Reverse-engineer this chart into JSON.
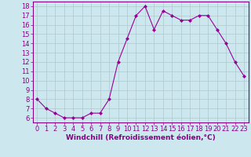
{
  "x": [
    0,
    1,
    2,
    3,
    4,
    5,
    6,
    7,
    8,
    9,
    10,
    11,
    12,
    13,
    14,
    15,
    16,
    17,
    18,
    19,
    20,
    21,
    22,
    23
  ],
  "y": [
    8,
    7,
    6.5,
    6,
    6,
    6,
    6.5,
    6.5,
    8,
    12,
    14.5,
    17,
    18,
    15.5,
    17.5,
    17,
    16.5,
    16.5,
    17,
    17,
    15.5,
    14,
    12,
    10.5
  ],
  "line_color": "#990099",
  "marker": "D",
  "markersize": 2,
  "bg_color": "#cce8ee",
  "grid_color": "#b0c8cc",
  "xlabel": "Windchill (Refroidissement éolien,°C)",
  "ylabel": "",
  "ylim": [
    5.5,
    18.5
  ],
  "xlim": [
    -0.5,
    23.5
  ],
  "yticks": [
    6,
    7,
    8,
    9,
    10,
    11,
    12,
    13,
    14,
    15,
    16,
    17,
    18
  ],
  "xticks": [
    0,
    1,
    2,
    3,
    4,
    5,
    6,
    7,
    8,
    9,
    10,
    11,
    12,
    13,
    14,
    15,
    16,
    17,
    18,
    19,
    20,
    21,
    22,
    23
  ],
  "axis_color": "#880088",
  "tick_color": "#880088",
  "label_color": "#880088",
  "xlabel_fontsize": 6.5,
  "tick_fontsize": 6
}
